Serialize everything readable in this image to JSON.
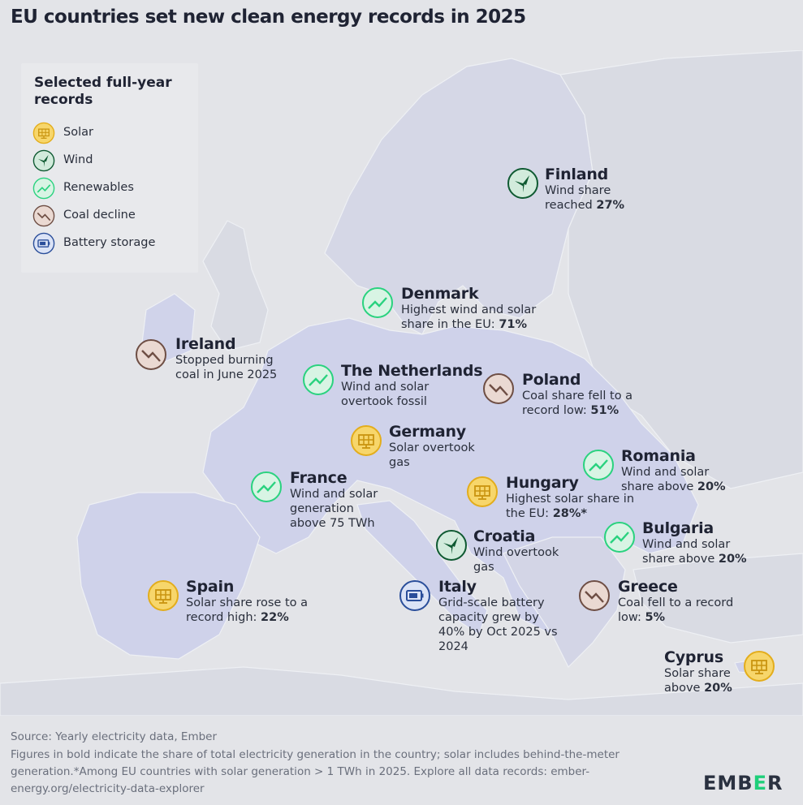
{
  "title": "EU countries set new clean energy records in 2025",
  "legend": {
    "title": "Selected full-year records",
    "items": [
      {
        "key": "solar",
        "label": "Solar",
        "icon": "solar-panel-icon"
      },
      {
        "key": "wind",
        "label": "Wind",
        "icon": "wind-turbine-icon"
      },
      {
        "key": "renewables",
        "label": "Renewables",
        "icon": "trend-up-icon"
      },
      {
        "key": "coal",
        "label": "Coal decline",
        "icon": "trend-down-icon"
      },
      {
        "key": "battery",
        "label": "Battery storage",
        "icon": "battery-icon"
      }
    ]
  },
  "colors": {
    "solar_fill": "#f7d66b",
    "solar_stroke": "#e3ad1c",
    "wind_fill": "#1f7a47",
    "wind_stroke": "#0f5a32",
    "renewables_fill": "#d8f4e4",
    "renewables_stroke": "#2ad27f",
    "coal_fill": "#ead9d2",
    "coal_stroke": "#6e4e44",
    "battery_fill": "#dbe3f6",
    "battery_stroke": "#2a4e9a",
    "map_land": "#d6d8e6",
    "map_eu": "#cfd2ea",
    "map_sea": "#e3e4e8",
    "brand": "#1fcf7a"
  },
  "countries": [
    {
      "key": "finland",
      "name": "Finland",
      "type": "wind",
      "text": "Wind share reached ",
      "bold": "27%"
    },
    {
      "key": "denmark",
      "name": "Denmark",
      "type": "renewables",
      "text": "Highest wind and solar share in the EU: ",
      "bold": "71%"
    },
    {
      "key": "ireland",
      "name": "Ireland",
      "type": "coal",
      "text": "Stopped burning coal in June 2025",
      "bold": ""
    },
    {
      "key": "netherlands",
      "name": "The Netherlands",
      "type": "renewables",
      "text": "Wind and solar overtook fossil",
      "bold": ""
    },
    {
      "key": "poland",
      "name": "Poland",
      "type": "coal",
      "text": "Coal share fell to a record low: ",
      "bold": "51%"
    },
    {
      "key": "germany",
      "name": "Germany",
      "type": "solar",
      "text": "Solar overtook gas",
      "bold": ""
    },
    {
      "key": "romania",
      "name": "Romania",
      "type": "renewables",
      "text": "Wind and solar share above ",
      "bold": "20%"
    },
    {
      "key": "france",
      "name": "France",
      "type": "renewables",
      "text": "Wind and solar generation above 75 TWh",
      "bold": ""
    },
    {
      "key": "hungary",
      "name": "Hungary",
      "type": "solar",
      "text": "Highest solar share in the EU: ",
      "bold": "28%*"
    },
    {
      "key": "bulgaria",
      "name": "Bulgaria",
      "type": "renewables",
      "text": "Wind and solar share above ",
      "bold": "20%"
    },
    {
      "key": "croatia",
      "name": "Croatia",
      "type": "wind",
      "text": "Wind overtook gas",
      "bold": ""
    },
    {
      "key": "spain",
      "name": "Spain",
      "type": "solar",
      "text": "Solar share rose to a record high: ",
      "bold": "22%"
    },
    {
      "key": "italy",
      "name": "Italy",
      "type": "battery",
      "text": "Grid-scale battery capacity grew by 40% by Oct 2025 vs 2024",
      "bold": ""
    },
    {
      "key": "greece",
      "name": "Greece",
      "type": "coal",
      "text": "Coal fell to a record low: ",
      "bold": "5%"
    },
    {
      "key": "cyprus",
      "name": "Cyprus",
      "type": "solar",
      "text": "Solar share above ",
      "bold": "20%"
    }
  ],
  "footer": {
    "source": "Source: Yearly electricity data, Ember",
    "notes": "Figures in bold indicate the share of total electricity generation in the country; solar includes behind-the-meter generation.*Among EU countries with solar generation > 1 TWh in 2025. Explore all data records: ember-energy.org/electricity-data-explorer",
    "logo": "EMBER"
  }
}
